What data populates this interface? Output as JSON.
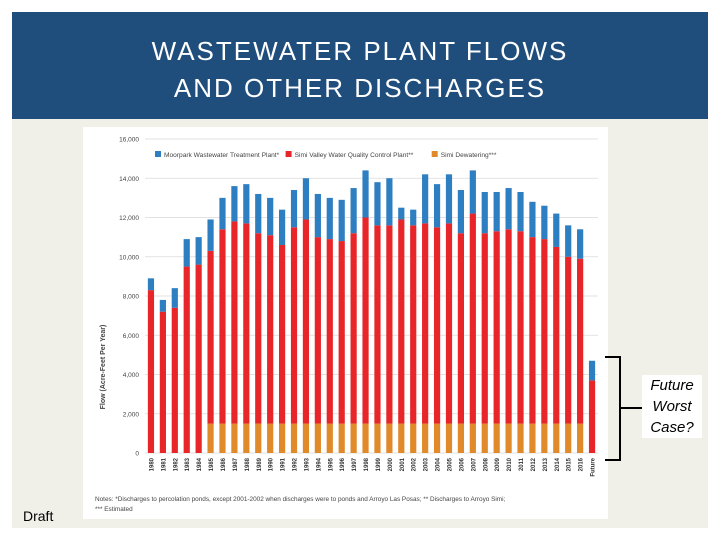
{
  "header": {
    "title_line1": "WASTEWATER PLANT FLOWS",
    "title_line2": "AND OTHER DISCHARGES",
    "bg_color": "#1f4e7d"
  },
  "draft_label": "Draft",
  "callout": {
    "line1": "Future",
    "line2": "Worst",
    "line3": "Case?"
  },
  "chart_data": {
    "type": "bar",
    "stacked": true,
    "ylabel": "Flow (Acre-Feet Per Year)",
    "ylim": [
      0,
      16000
    ],
    "yticks": [
      "0",
      "2,000",
      "4,000",
      "6,000",
      "8,000",
      "10,000",
      "12,000",
      "14,000",
      "16,000"
    ],
    "grid": true,
    "legend_position": "top",
    "categories": [
      "1980",
      "1981",
      "1982",
      "1983",
      "1984",
      "1985",
      "1986",
      "1987",
      "1988",
      "1989",
      "1990",
      "1991",
      "1992",
      "1993",
      "1994",
      "1995",
      "1996",
      "1997",
      "1998",
      "1999",
      "2000",
      "2001",
      "2002",
      "2003",
      "2004",
      "2005",
      "2006",
      "2007",
      "2008",
      "2009",
      "2010",
      "2011",
      "2012",
      "2013",
      "2014",
      "2015",
      "2016",
      "Future"
    ],
    "series": [
      {
        "name": "Simi Dewatering***",
        "color": "#e08a2a",
        "values": [
          0,
          0,
          0,
          0,
          0,
          1500,
          1500,
          1500,
          1500,
          1500,
          1500,
          1500,
          1500,
          1500,
          1500,
          1500,
          1500,
          1500,
          1500,
          1500,
          1500,
          1500,
          1500,
          1500,
          1500,
          1500,
          1500,
          1500,
          1500,
          1500,
          1500,
          1500,
          1500,
          1500,
          1500,
          1500,
          1500,
          0
        ]
      },
      {
        "name": "Simi Valley Water Quality Control Plant**",
        "color": "#e8262a",
        "values": [
          8300,
          7200,
          7400,
          9500,
          9600,
          8800,
          9900,
          10300,
          10200,
          9700,
          9600,
          9100,
          10000,
          10400,
          9500,
          9400,
          9300,
          9700,
          10500,
          10100,
          10100,
          10400,
          10100,
          10200,
          10000,
          10200,
          9700,
          10700,
          9700,
          9800,
          9900,
          9800,
          9500,
          9400,
          9000,
          8500,
          8400,
          3700
        ]
      },
      {
        "name": "Moorpark Wastewater Treatment Plant*",
        "color": "#2e7fc1",
        "values": [
          600,
          600,
          1000,
          1400,
          1400,
          1600,
          1600,
          1800,
          2000,
          2000,
          1900,
          1800,
          1900,
          2100,
          2200,
          2100,
          2100,
          2300,
          2400,
          2200,
          2400,
          600,
          800,
          2500,
          2200,
          2500,
          2200,
          2200,
          2100,
          2000,
          2100,
          2000,
          1800,
          1700,
          1700,
          1600,
          1500,
          1000
        ]
      }
    ],
    "notes": [
      "Notes: *Discharges to percolation ponds, except 2001-2002 when discharges were to ponds and Arroyo Las Posas; ** Discharges to Arroyo Simi;",
      "*** Estimated"
    ]
  }
}
